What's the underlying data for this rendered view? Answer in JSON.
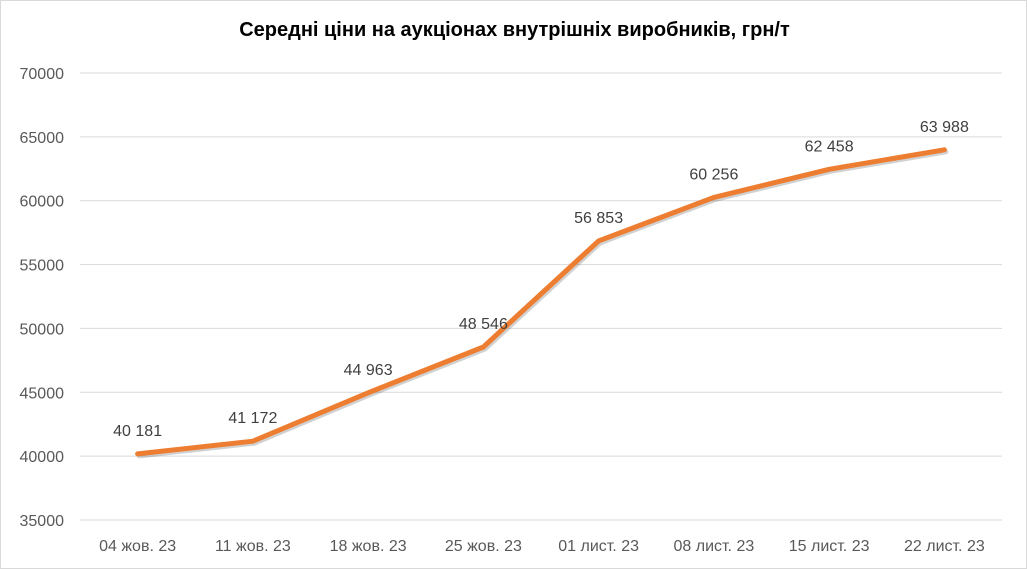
{
  "chart_data": {
    "type": "line",
    "title": "Середні ціни на аукціонах внутрішніх виробників, грн/т",
    "xlabel": "",
    "ylabel": "",
    "categories": [
      "04 жов. 23",
      "11 жов. 23",
      "18 жов. 23",
      "25 жов. 23",
      "01 лист. 23",
      "08 лист. 23",
      "15 лист. 23",
      "22 лист. 23"
    ],
    "series": [
      {
        "values": [
          40181,
          41172,
          44963,
          48546,
          56853,
          60256,
          62458,
          63988
        ],
        "labels": [
          "40 181",
          "41 172",
          "44 963",
          "48 546",
          "56 853",
          "60 256",
          "62 458",
          "63 988"
        ],
        "color": "#ED7D31"
      }
    ],
    "ylim": [
      35000,
      70000
    ],
    "yticks": [
      "35000",
      "40000",
      "45000",
      "50000",
      "55000",
      "60000",
      "65000",
      "70000"
    ],
    "grid": true,
    "legend": "none",
    "gridColor": "#d9d9d9"
  }
}
